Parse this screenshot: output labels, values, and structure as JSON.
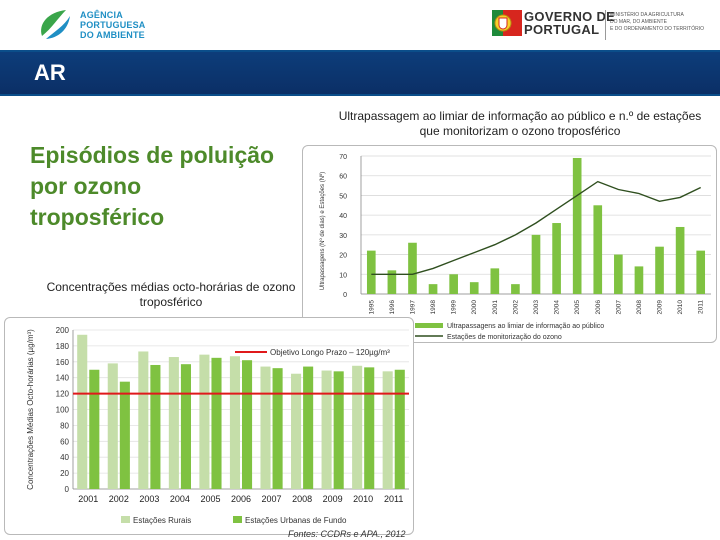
{
  "header": {
    "agency_lines": [
      "AGÊNCIA",
      "PORTUGUESA",
      "DO AMBIENTE"
    ],
    "government_lines": [
      "GOVERNO DE",
      "PORTUGAL"
    ],
    "ministry_lines": [
      "MINISTÉRIO DA AGRICULTURA",
      "DO MAR, DO AMBIENTE",
      "E DO ORDENAMENTO DO TERRITÓRIO"
    ]
  },
  "banner": {
    "title": "AR"
  },
  "main": {
    "title_lines": [
      "Episódios de poluição",
      "por ozono",
      "troposférico"
    ],
    "bottom_chart_heading": "Concentrações médias octo-horárias de ozono troposférico",
    "top_chart_heading": "Ultrapassagem ao limiar de informação ao público e n.º de estações que monitorizam o ozono troposférico",
    "source": "Fontes: CCDRs e APA., 2012"
  },
  "colors": {
    "banner": "#0b4e8a",
    "title_green": "#4d8a2a",
    "bar_green": "#7fc241",
    "bar_light": "#c5dea9",
    "line_dark": "#2f4f1f",
    "objective_red": "#e0191b"
  },
  "chart_data": [
    {
      "type": "bar",
      "title": "Ultrapassagem ao limiar de informação ao público e n.º de estações que monitorizam o ozono troposférico",
      "ylabel": "Ultrapassagens (Nº de dias) e Estações (Nº)",
      "ylim": [
        0,
        70
      ],
      "yticks": [
        0,
        10,
        20,
        30,
        40,
        50,
        60,
        70
      ],
      "categories": [
        "1995",
        "1996",
        "1997",
        "1998",
        "1999",
        "2000",
        "2001",
        "2002",
        "2003",
        "2004",
        "2005",
        "2006",
        "2007",
        "2008",
        "2009",
        "2010",
        "2011"
      ],
      "series": [
        {
          "name": "Ultrapassagens ao limiar de informação ao público",
          "kind": "bar",
          "values": [
            22,
            12,
            26,
            5,
            10,
            6,
            13,
            5,
            30,
            36,
            69,
            45,
            20,
            14,
            24,
            34,
            22
          ]
        },
        {
          "name": "Estações de monitorização do ozono",
          "kind": "line",
          "values": [
            10,
            10,
            10,
            13,
            17,
            21,
            25,
            30,
            36,
            43,
            50,
            57,
            53,
            51,
            47,
            49,
            54
          ]
        }
      ]
    },
    {
      "type": "bar",
      "title": "Concentrações médias octo-horárias de ozono troposférico",
      "ylabel": "Concentrações Médias Octo-horárias (µg/m³)",
      "ylim": [
        0,
        200
      ],
      "yticks": [
        0,
        20,
        40,
        60,
        80,
        100,
        120,
        140,
        160,
        180,
        200
      ],
      "categories": [
        "2001",
        "2002",
        "2003",
        "2004",
        "2005",
        "2006",
        "2007",
        "2008",
        "2009",
        "2010",
        "2011"
      ],
      "series": [
        {
          "name": "Estações Rurais",
          "values": [
            194,
            158,
            173,
            166,
            169,
            167,
            154,
            145,
            149,
            155,
            148
          ]
        },
        {
          "name": "Estações Urbanas de Fundo",
          "values": [
            150,
            135,
            156,
            157,
            165,
            162,
            152,
            154,
            148,
            153,
            150
          ]
        }
      ],
      "reference_line": {
        "label": "Objetivo Longo Prazo – 120µg/m³",
        "value": 120
      }
    }
  ]
}
